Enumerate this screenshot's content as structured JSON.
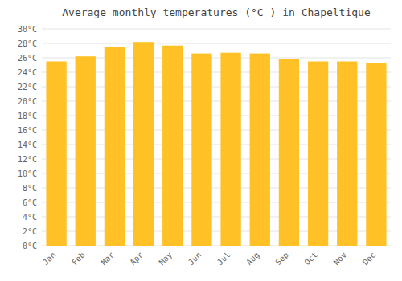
{
  "chart_data": {
    "type": "bar",
    "title": "Average monthly temperatures (°C ) in Chapeltique",
    "categories": [
      "Jan",
      "Feb",
      "Mar",
      "Apr",
      "May",
      "Jun",
      "Jul",
      "Aug",
      "Sep",
      "Oct",
      "Nov",
      "Dec"
    ],
    "values": [
      25.5,
      26.2,
      27.5,
      28.2,
      27.7,
      26.6,
      26.7,
      26.6,
      25.8,
      25.5,
      25.5,
      25.3
    ],
    "color": "#FFC125",
    "ylim": [
      0,
      30
    ],
    "yticks": [
      {
        "value": 0,
        "label": "0°C"
      },
      {
        "value": 2,
        "label": "2°C"
      },
      {
        "value": 4,
        "label": "4°C"
      },
      {
        "value": 6,
        "label": "6°C"
      },
      {
        "value": 8,
        "label": "8°C"
      },
      {
        "value": 10,
        "label": "10°C"
      },
      {
        "value": 12,
        "label": "12°C"
      },
      {
        "value": 14,
        "label": "14°C"
      },
      {
        "value": 16,
        "label": "16°C"
      },
      {
        "value": 18,
        "label": "18°C"
      },
      {
        "value": 20,
        "label": "20°C"
      },
      {
        "value": 22,
        "label": "22°C"
      },
      {
        "value": 24,
        "label": "24°C"
      },
      {
        "value": 26,
        "label": "26°C"
      },
      {
        "value": 28,
        "label": "28°C"
      },
      {
        "value": 30,
        "label": "30°C"
      }
    ],
    "grid": true
  }
}
